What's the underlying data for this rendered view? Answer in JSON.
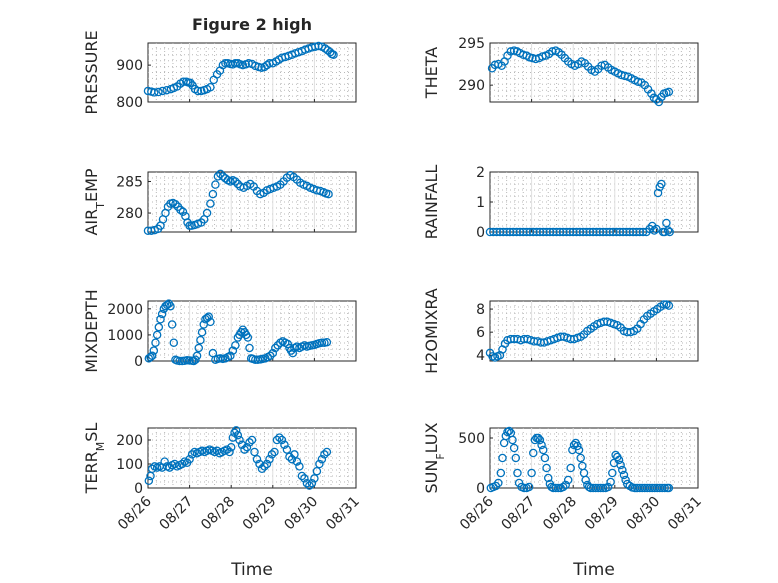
{
  "figure": {
    "title": "Figure 2 high",
    "xlabel": "Time"
  },
  "chart_data": [
    {
      "type": "scatter",
      "col": 0,
      "row": 0,
      "ylabel": "PRESSURE",
      "x_ticks": [
        "08/26",
        "08/27",
        "08/28",
        "08/29",
        "08/30",
        "08/31"
      ],
      "xlim": [
        0,
        5
      ],
      "ylim": [
        800,
        960
      ],
      "y_ticks": [
        800,
        900
      ],
      "color": "#0072bd",
      "x": [
        0.0,
        0.08,
        0.15,
        0.25,
        0.35,
        0.45,
        0.55,
        0.62,
        0.7,
        0.78,
        0.85,
        0.92,
        0.97,
        1.02,
        1.07,
        1.13,
        1.2,
        1.28,
        1.35,
        1.42,
        1.5,
        1.58,
        1.66,
        1.73,
        1.8,
        1.86,
        1.92,
        1.98,
        2.04,
        2.1,
        2.16,
        2.22,
        2.28,
        2.35,
        2.42,
        2.5,
        2.58,
        2.66,
        2.73,
        2.8,
        2.86,
        2.92,
        3.0,
        3.08,
        3.15,
        3.22,
        3.3,
        3.38,
        3.46,
        3.54,
        3.62,
        3.7,
        3.78,
        3.86,
        3.94,
        4.02,
        4.1,
        4.18,
        4.26,
        4.32,
        4.38,
        4.42,
        4.46
      ],
      "y": [
        830,
        828,
        826,
        827,
        830,
        832,
        835,
        838,
        842,
        850,
        855,
        855,
        853,
        852,
        845,
        835,
        830,
        830,
        832,
        835,
        840,
        860,
        875,
        885,
        900,
        905,
        905,
        903,
        902,
        905,
        905,
        902,
        900,
        902,
        905,
        903,
        898,
        895,
        893,
        895,
        900,
        905,
        905,
        910,
        915,
        920,
        922,
        925,
        928,
        932,
        935,
        938,
        942,
        945,
        948,
        950,
        952,
        950,
        945,
        940,
        935,
        930,
        928
      ]
    },
    {
      "type": "scatter",
      "col": 1,
      "row": 0,
      "ylabel": "THETA",
      "x_ticks": [
        "08/26",
        "08/27",
        "08/28",
        "08/29",
        "08/30",
        "08/31"
      ],
      "xlim": [
        0,
        5
      ],
      "ylim": [
        288,
        295
      ],
      "y_ticks": [
        290,
        295
      ],
      "color": "#0072bd",
      "x": [
        0.05,
        0.12,
        0.2,
        0.28,
        0.35,
        0.42,
        0.5,
        0.58,
        0.65,
        0.72,
        0.8,
        0.88,
        0.95,
        1.02,
        1.1,
        1.18,
        1.26,
        1.34,
        1.42,
        1.5,
        1.58,
        1.65,
        1.72,
        1.8,
        1.88,
        1.96,
        2.04,
        2.12,
        2.2,
        2.28,
        2.36,
        2.44,
        2.52,
        2.6,
        2.68,
        2.76,
        2.84,
        2.92,
        3.0,
        3.08,
        3.16,
        3.24,
        3.32,
        3.4,
        3.48,
        3.56,
        3.64,
        3.72,
        3.8,
        3.88,
        3.94,
        4.0,
        4.06,
        4.12,
        4.18,
        4.24,
        4.3
      ],
      "y": [
        292.0,
        292.4,
        292.5,
        292.3,
        292.8,
        293.5,
        294.0,
        294.1,
        294.0,
        293.8,
        293.6,
        293.5,
        293.3,
        293.2,
        293.1,
        293.2,
        293.4,
        293.5,
        293.7,
        294.0,
        294.1,
        293.9,
        293.6,
        293.2,
        292.8,
        292.5,
        292.3,
        292.5,
        292.8,
        292.6,
        292.2,
        291.8,
        291.6,
        291.9,
        292.3,
        292.4,
        292.1,
        291.8,
        291.6,
        291.4,
        291.2,
        291.1,
        291.0,
        290.8,
        290.6,
        290.4,
        290.3,
        290.0,
        289.5,
        289.0,
        288.5,
        288.3,
        288.0,
        288.6,
        289.0,
        289.1,
        289.2
      ]
    },
    {
      "type": "scatter",
      "col": 0,
      "row": 1,
      "ylabel": "AIR_TEMP",
      "x_ticks": [
        "08/26",
        "08/27",
        "08/28",
        "08/29",
        "08/30",
        "08/31"
      ],
      "xlim": [
        0,
        5
      ],
      "ylim": [
        277,
        286.5
      ],
      "y_ticks": [
        280,
        285
      ],
      "color": "#0072bd",
      "x": [
        0.0,
        0.08,
        0.16,
        0.24,
        0.3,
        0.36,
        0.42,
        0.48,
        0.54,
        0.6,
        0.66,
        0.72,
        0.78,
        0.84,
        0.9,
        0.95,
        1.0,
        1.05,
        1.12,
        1.2,
        1.28,
        1.35,
        1.42,
        1.5,
        1.56,
        1.62,
        1.68,
        1.74,
        1.8,
        1.86,
        1.92,
        1.98,
        2.04,
        2.1,
        2.16,
        2.22,
        2.3,
        2.38,
        2.46,
        2.54,
        2.62,
        2.7,
        2.78,
        2.86,
        2.94,
        3.02,
        3.1,
        3.18,
        3.26,
        3.34,
        3.42,
        3.5,
        3.58,
        3.66,
        3.74,
        3.82,
        3.9,
        3.98,
        4.06,
        4.14,
        4.22,
        4.28,
        4.34
      ],
      "y": [
        277.2,
        277.2,
        277.3,
        277.5,
        278.0,
        279.0,
        280.0,
        281.0,
        281.5,
        281.6,
        281.4,
        281.0,
        280.5,
        280.2,
        279.5,
        278.5,
        278.0,
        278.0,
        278.1,
        278.3,
        278.5,
        279.0,
        280.0,
        281.5,
        283.0,
        284.5,
        285.8,
        286.2,
        285.8,
        285.5,
        285.2,
        285.0,
        285.2,
        285.0,
        284.6,
        284.2,
        284.0,
        284.3,
        284.6,
        284.2,
        283.5,
        283.0,
        283.2,
        283.6,
        283.8,
        284.0,
        284.2,
        284.5,
        285.0,
        285.6,
        286.0,
        285.7,
        285.3,
        284.8,
        284.5,
        284.3,
        284.0,
        283.8,
        283.6,
        283.5,
        283.3,
        283.1,
        283.0
      ]
    },
    {
      "type": "scatter",
      "col": 1,
      "row": 1,
      "ylabel": "RAINFALL",
      "x_ticks": [
        "08/26",
        "08/27",
        "08/28",
        "08/29",
        "08/30",
        "08/31"
      ],
      "xlim": [
        0,
        5
      ],
      "ylim": [
        0,
        2
      ],
      "y_ticks": [
        0,
        1,
        2
      ],
      "color": "#0072bd",
      "x": [
        0.0,
        0.08,
        0.16,
        0.24,
        0.32,
        0.4,
        0.48,
        0.56,
        0.64,
        0.72,
        0.8,
        0.88,
        0.96,
        1.04,
        1.12,
        1.2,
        1.28,
        1.36,
        1.44,
        1.52,
        1.6,
        1.68,
        1.76,
        1.84,
        1.92,
        2.0,
        2.08,
        2.16,
        2.24,
        2.32,
        2.4,
        2.48,
        2.56,
        2.64,
        2.72,
        2.8,
        2.88,
        2.96,
        3.04,
        3.12,
        3.2,
        3.28,
        3.36,
        3.44,
        3.52,
        3.6,
        3.68,
        3.76,
        3.84,
        3.9,
        3.95,
        4.0,
        4.04,
        4.08,
        4.12,
        4.16,
        4.2,
        4.24,
        4.28,
        4.32
      ],
      "y": [
        0,
        0,
        0,
        0,
        0,
        0,
        0,
        0,
        0,
        0,
        0,
        0,
        0,
        0,
        0,
        0,
        0,
        0,
        0,
        0,
        0,
        0,
        0,
        0,
        0,
        0,
        0,
        0,
        0,
        0,
        0,
        0,
        0,
        0,
        0,
        0,
        0,
        0,
        0,
        0,
        0,
        0,
        0,
        0,
        0,
        0,
        0,
        0,
        0.1,
        0.2,
        0.05,
        0.1,
        1.3,
        1.5,
        1.6,
        0,
        0,
        0.3,
        0.05,
        0
      ]
    },
    {
      "type": "scatter",
      "col": 0,
      "row": 2,
      "ylabel": "MIXDEPTH",
      "x_ticks": [
        "08/26",
        "08/27",
        "08/28",
        "08/29",
        "08/30",
        "08/31"
      ],
      "xlim": [
        0,
        5
      ],
      "ylim": [
        0,
        2300
      ],
      "y_ticks": [
        0,
        1000,
        2000
      ],
      "color": "#0072bd",
      "x": [
        0.02,
        0.06,
        0.1,
        0.14,
        0.18,
        0.22,
        0.26,
        0.3,
        0.34,
        0.38,
        0.42,
        0.46,
        0.5,
        0.54,
        0.58,
        0.62,
        0.66,
        0.7,
        0.76,
        0.82,
        0.88,
        0.94,
        1.0,
        1.06,
        1.1,
        1.14,
        1.18,
        1.22,
        1.26,
        1.3,
        1.34,
        1.38,
        1.42,
        1.46,
        1.5,
        1.56,
        1.62,
        1.68,
        1.74,
        1.8,
        1.86,
        1.92,
        1.98,
        2.04,
        2.1,
        2.16,
        2.2,
        2.24,
        2.28,
        2.32,
        2.36,
        2.4,
        2.44,
        2.48,
        2.52,
        2.58,
        2.64,
        2.7,
        2.76,
        2.82,
        2.88,
        2.94,
        3.0,
        3.06,
        3.12,
        3.18,
        3.24,
        3.3,
        3.36,
        3.4,
        3.44,
        3.48,
        3.52,
        3.58,
        3.64,
        3.7,
        3.76,
        3.82,
        3.88,
        3.94,
        4.0,
        4.06,
        4.12,
        4.18,
        4.24,
        4.3
      ],
      "y": [
        100,
        150,
        200,
        400,
        700,
        1000,
        1300,
        1600,
        1800,
        2000,
        2100,
        2150,
        2200,
        2100,
        1400,
        700,
        50,
        20,
        0,
        0,
        10,
        30,
        20,
        10,
        0,
        50,
        200,
        500,
        800,
        1100,
        1400,
        1600,
        1650,
        1700,
        1500,
        300,
        50,
        80,
        100,
        80,
        100,
        150,
        200,
        400,
        600,
        900,
        1000,
        1100,
        1200,
        1100,
        1000,
        900,
        500,
        100,
        80,
        50,
        50,
        60,
        80,
        100,
        150,
        200,
        300,
        500,
        600,
        700,
        750,
        700,
        650,
        500,
        400,
        300,
        500,
        550,
        500,
        550,
        600,
        550,
        580,
        600,
        620,
        650,
        680,
        700,
        700,
        720
      ]
    },
    {
      "type": "scatter",
      "col": 1,
      "row": 2,
      "ylabel": "H2OMIXRA",
      "x_ticks": [
        "08/26",
        "08/27",
        "08/28",
        "08/29",
        "08/30",
        "08/31"
      ],
      "xlim": [
        0,
        5
      ],
      "ylim": [
        3.5,
        8.7
      ],
      "y_ticks": [
        4,
        6,
        8
      ],
      "color": "#0072bd",
      "x": [
        0.0,
        0.06,
        0.12,
        0.18,
        0.24,
        0.3,
        0.36,
        0.42,
        0.5,
        0.58,
        0.66,
        0.74,
        0.82,
        0.9,
        0.98,
        1.06,
        1.14,
        1.22,
        1.3,
        1.38,
        1.46,
        1.54,
        1.62,
        1.7,
        1.78,
        1.86,
        1.94,
        2.02,
        2.1,
        2.18,
        2.26,
        2.34,
        2.42,
        2.5,
        2.58,
        2.66,
        2.74,
        2.82,
        2.9,
        2.98,
        3.06,
        3.14,
        3.22,
        3.3,
        3.38,
        3.46,
        3.54,
        3.62,
        3.7,
        3.78,
        3.86,
        3.94,
        4.02,
        4.1,
        4.18,
        4.24,
        4.3
      ],
      "y": [
        4.2,
        3.9,
        3.8,
        3.9,
        4.0,
        4.5,
        5.0,
        5.3,
        5.4,
        5.4,
        5.4,
        5.3,
        5.4,
        5.4,
        5.3,
        5.2,
        5.2,
        5.1,
        5.1,
        5.2,
        5.3,
        5.4,
        5.5,
        5.6,
        5.6,
        5.5,
        5.4,
        5.4,
        5.5,
        5.6,
        5.8,
        6.1,
        6.3,
        6.5,
        6.7,
        6.8,
        6.9,
        6.9,
        6.8,
        6.7,
        6.6,
        6.4,
        6.1,
        6.0,
        6.0,
        6.1,
        6.3,
        6.7,
        7.1,
        7.4,
        7.6,
        7.8,
        8.0,
        8.2,
        8.4,
        8.4,
        8.3
      ]
    },
    {
      "type": "scatter",
      "col": 0,
      "row": 3,
      "ylabel": "TERR_MSL",
      "x_ticks": [
        "08/26",
        "08/27",
        "08/28",
        "08/29",
        "08/30",
        "08/31"
      ],
      "xlim": [
        0,
        5
      ],
      "ylim": [
        0,
        250
      ],
      "y_ticks": [
        0,
        100,
        200
      ],
      "color": "#0072bd",
      "x": [
        0.02,
        0.06,
        0.1,
        0.16,
        0.22,
        0.28,
        0.34,
        0.4,
        0.46,
        0.52,
        0.58,
        0.64,
        0.7,
        0.76,
        0.82,
        0.88,
        0.94,
        1.0,
        1.06,
        1.12,
        1.18,
        1.24,
        1.3,
        1.36,
        1.42,
        1.48,
        1.54,
        1.6,
        1.66,
        1.72,
        1.78,
        1.84,
        1.9,
        1.96,
        2.0,
        2.04,
        2.08,
        2.12,
        2.16,
        2.2,
        2.26,
        2.32,
        2.38,
        2.44,
        2.5,
        2.56,
        2.62,
        2.68,
        2.74,
        2.8,
        2.86,
        2.92,
        2.98,
        3.04,
        3.1,
        3.16,
        3.22,
        3.28,
        3.34,
        3.4,
        3.46,
        3.52,
        3.58,
        3.64,
        3.7,
        3.76,
        3.82,
        3.88,
        3.94,
        4.0,
        4.06,
        4.12,
        4.18,
        4.24,
        4.3
      ],
      "y": [
        30,
        50,
        80,
        90,
        85,
        90,
        85,
        110,
        90,
        85,
        95,
        100,
        90,
        95,
        100,
        110,
        105,
        120,
        140,
        150,
        145,
        150,
        155,
        150,
        155,
        160,
        155,
        150,
        155,
        145,
        150,
        155,
        160,
        150,
        170,
        210,
        230,
        240,
        220,
        200,
        180,
        160,
        170,
        190,
        200,
        150,
        120,
        100,
        80,
        90,
        100,
        120,
        140,
        150,
        200,
        210,
        200,
        180,
        160,
        130,
        120,
        140,
        110,
        90,
        50,
        40,
        20,
        10,
        20,
        40,
        70,
        100,
        120,
        140,
        150
      ]
    },
    {
      "type": "scatter",
      "col": 1,
      "row": 3,
      "ylabel": "SUN_FLUX",
      "x_ticks": [
        "08/26",
        "08/27",
        "08/28",
        "08/29",
        "08/30",
        "08/31"
      ],
      "xlim": [
        0,
        5
      ],
      "ylim": [
        0,
        600
      ],
      "y_ticks": [
        0,
        500
      ],
      "color": "#0072bd",
      "x": [
        0.02,
        0.08,
        0.14,
        0.2,
        0.26,
        0.3,
        0.34,
        0.38,
        0.42,
        0.46,
        0.5,
        0.54,
        0.58,
        0.62,
        0.66,
        0.7,
        0.76,
        0.82,
        0.88,
        0.94,
        1.0,
        1.04,
        1.08,
        1.12,
        1.16,
        1.2,
        1.24,
        1.28,
        1.32,
        1.36,
        1.4,
        1.44,
        1.48,
        1.52,
        1.58,
        1.64,
        1.7,
        1.76,
        1.82,
        1.88,
        1.94,
        1.98,
        2.02,
        2.06,
        2.1,
        2.14,
        2.18,
        2.22,
        2.26,
        2.3,
        2.34,
        2.38,
        2.42,
        2.48,
        2.54,
        2.6,
        2.66,
        2.72,
        2.78,
        2.84,
        2.9,
        2.94,
        2.98,
        3.02,
        3.06,
        3.1,
        3.14,
        3.18,
        3.22,
        3.26,
        3.3,
        3.36,
        3.42,
        3.48,
        3.54,
        3.6,
        3.66,
        3.72,
        3.78,
        3.84,
        3.9,
        3.96,
        4.02,
        4.08,
        4.14,
        4.2,
        4.26,
        4.3
      ],
      "y": [
        0,
        10,
        20,
        50,
        150,
        300,
        450,
        520,
        560,
        570,
        550,
        480,
        400,
        300,
        150,
        50,
        10,
        0,
        0,
        10,
        150,
        350,
        480,
        500,
        500,
        480,
        430,
        380,
        300,
        200,
        100,
        40,
        10,
        0,
        0,
        0,
        0,
        10,
        30,
        80,
        200,
        380,
        430,
        450,
        420,
        380,
        300,
        220,
        150,
        80,
        30,
        10,
        0,
        0,
        0,
        0,
        0,
        0,
        0,
        10,
        60,
        150,
        250,
        330,
        310,
        280,
        230,
        180,
        130,
        80,
        40,
        20,
        5,
        0,
        0,
        0,
        0,
        0,
        0,
        0,
        0,
        0,
        0,
        0,
        0,
        0,
        0,
        0
      ]
    }
  ]
}
